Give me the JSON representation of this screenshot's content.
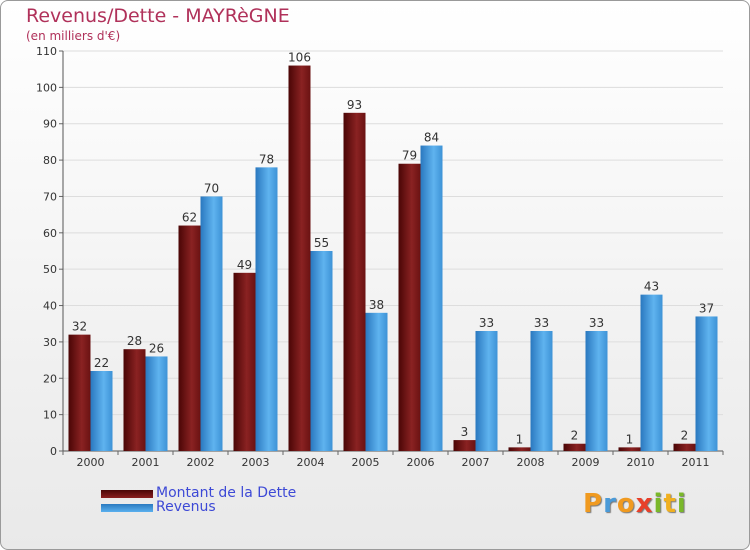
{
  "chart_data": {
    "type": "bar",
    "title": "Revenus/Dette - MAYRèGNE",
    "subtitle": "(en milliers d'€)",
    "categories": [
      "2000",
      "2001",
      "2002",
      "2003",
      "2004",
      "2005",
      "2006",
      "2007",
      "2008",
      "2009",
      "2010",
      "2011"
    ],
    "series": [
      {
        "name": "Montant de la Dette",
        "values": [
          32,
          28,
          62,
          49,
          106,
          93,
          79,
          3,
          1,
          2,
          1,
          2
        ],
        "color": "#7a1818"
      },
      {
        "name": "Revenus",
        "values": [
          22,
          26,
          70,
          78,
          55,
          38,
          84,
          33,
          33,
          33,
          43,
          37
        ],
        "color": "#4aa0e0"
      }
    ],
    "ylim": [
      0,
      110
    ],
    "yticks": [
      0,
      10,
      20,
      30,
      40,
      50,
      60,
      70,
      80,
      90,
      100,
      110
    ],
    "grid": true,
    "legend_position": "bottom-left"
  },
  "logo": {
    "letters": [
      "P",
      "r",
      "o",
      "x",
      "i",
      "t",
      "i"
    ],
    "colors": [
      "#f09a20",
      "#4a9ad8",
      "#f09a20",
      "#e8402a",
      "#7ab82a",
      "#f0b020",
      "#7ab82a"
    ]
  }
}
